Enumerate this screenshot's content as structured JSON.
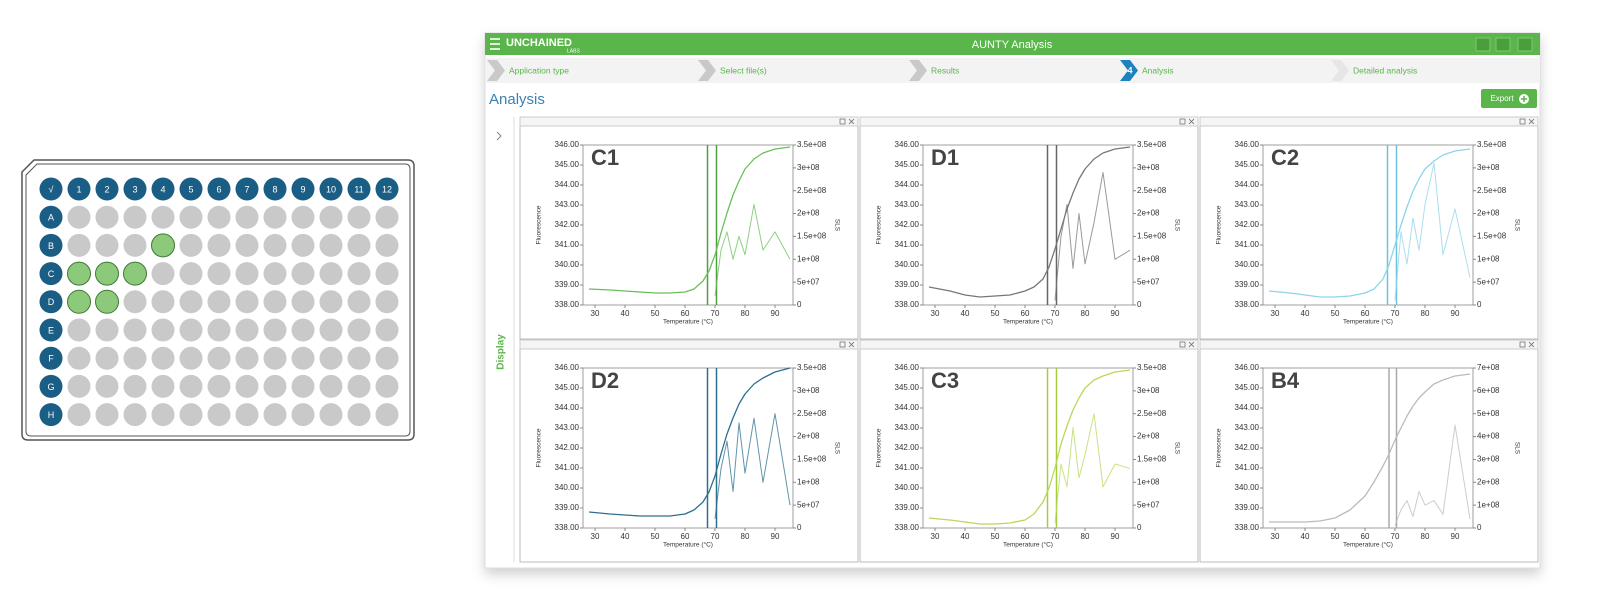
{
  "window": {
    "logo": "UNCHAINED",
    "logo_sub": "LABS",
    "title": "AUNTY Analysis"
  },
  "steps": [
    "Application type",
    "Select file(s)",
    "Results",
    "Analysis",
    "Detailed analysis"
  ],
  "active_step": 4,
  "page": {
    "heading": "Analysis",
    "export": "Export",
    "side_label": "Display"
  },
  "plate": {
    "corner": "√",
    "columns": [
      1,
      2,
      3,
      4,
      5,
      6,
      7,
      8,
      9,
      10,
      11,
      12
    ],
    "rows": [
      "A",
      "B",
      "C",
      "D",
      "E",
      "F",
      "G",
      "H"
    ]
  },
  "analysis": {
    "axes": {
      "x_label": "Temperature (°C)",
      "y_label": "Fluorescence",
      "y2_label": "SLS",
      "xlim": [
        26,
        96
      ],
      "xticks": [
        30,
        40,
        50,
        60,
        70,
        80,
        90
      ],
      "ylim": [
        338,
        346
      ],
      "yticks": [
        {
          "value": 338,
          "label": "338.00"
        },
        {
          "value": 339,
          "label": "339.00"
        },
        {
          "value": 340,
          "label": "340.00"
        },
        {
          "value": 341,
          "label": "341.00"
        },
        {
          "value": 342,
          "label": "342.00"
        },
        {
          "value": 343,
          "label": "343.00"
        },
        {
          "value": 344,
          "label": "344.00"
        },
        {
          "value": 345,
          "label": "345.00"
        },
        {
          "value": 346,
          "label": "346.00"
        }
      ]
    },
    "temperature": [
      28,
      35,
      40,
      45,
      50,
      55,
      60,
      63,
      66,
      68,
      70,
      72,
      74,
      76,
      78,
      80,
      83,
      86,
      90,
      95
    ],
    "panels": [
      {
        "title": "C1",
        "color": "#6abf5a",
        "marker_color": "#4f9e42",
        "markers": [
          67.5,
          70.5
        ],
        "fluorescence": [
          338.8,
          338.75,
          338.7,
          338.65,
          338.6,
          338.6,
          338.65,
          338.8,
          339.2,
          339.7,
          340.5,
          341.6,
          342.6,
          343.5,
          344.2,
          344.8,
          345.3,
          345.6,
          345.8,
          345.9
        ],
        "sls": [
          null,
          null,
          null,
          null,
          null,
          null,
          null,
          null,
          null,
          null,
          20000000,
          120000000,
          160000000,
          100000000,
          150000000,
          110000000,
          220000000,
          120000000,
          160000000,
          100000000
        ],
        "y2lim": [
          0,
          350000000
        ],
        "y2ticks": [
          0,
          {
            "value": 50000000,
            "label": "5e+07"
          },
          {
            "value": 100000000,
            "label": "1e+08"
          },
          {
            "value": 150000000,
            "label": "1.5e+08"
          },
          {
            "value": 200000000,
            "label": "2e+08"
          },
          {
            "value": 250000000,
            "label": "2.5e+08"
          },
          {
            "value": 300000000,
            "label": "3e+08"
          },
          {
            "value": 350000000,
            "label": "3.5e+08"
          }
        ]
      },
      {
        "title": "D1",
        "color": "#777777",
        "marker_color": "#666666",
        "markers": [
          67.5,
          70.5
        ],
        "fluorescence": [
          338.9,
          338.7,
          338.5,
          338.4,
          338.45,
          338.5,
          338.7,
          338.9,
          339.3,
          339.9,
          340.8,
          341.8,
          342.8,
          343.6,
          344.3,
          344.8,
          345.3,
          345.6,
          345.8,
          345.9
        ],
        "sls": [
          null,
          null,
          null,
          null,
          null,
          null,
          null,
          null,
          null,
          null,
          10000000,
          150000000,
          220000000,
          80000000,
          200000000,
          90000000,
          180000000,
          290000000,
          100000000,
          120000000
        ],
        "y2lim": [
          0,
          350000000
        ],
        "y2ticks": [
          0,
          {
            "value": 50000000,
            "label": "5e+07"
          },
          {
            "value": 100000000,
            "label": "1e+08"
          },
          {
            "value": 150000000,
            "label": "1.5e+08"
          },
          {
            "value": 200000000,
            "label": "2e+08"
          },
          {
            "value": 250000000,
            "label": "2.5e+08"
          },
          {
            "value": 300000000,
            "label": "3e+08"
          },
          {
            "value": 350000000,
            "label": "3.5e+08"
          }
        ]
      },
      {
        "title": "C2",
        "color": "#8fd3ea",
        "marker_color": "#6cc3e0",
        "markers": [
          67.5,
          70.5
        ],
        "fluorescence": [
          338.7,
          338.6,
          338.5,
          338.4,
          338.4,
          338.45,
          338.6,
          338.8,
          339.3,
          340.0,
          341.0,
          342.0,
          342.9,
          343.7,
          344.3,
          344.8,
          345.2,
          345.5,
          345.7,
          345.8
        ],
        "sls": [
          null,
          null,
          null,
          null,
          null,
          null,
          null,
          null,
          null,
          null,
          10000000,
          160000000,
          90000000,
          190000000,
          120000000,
          220000000,
          310000000,
          110000000,
          210000000,
          60000000
        ],
        "y2lim": [
          0,
          350000000
        ],
        "y2ticks": [
          0,
          {
            "value": 50000000,
            "label": "5e+07"
          },
          {
            "value": 100000000,
            "label": "1e+08"
          },
          {
            "value": 150000000,
            "label": "1.5e+08"
          },
          {
            "value": 200000000,
            "label": "2e+08"
          },
          {
            "value": 250000000,
            "label": "2.5e+08"
          },
          {
            "value": 300000000,
            "label": "3e+08"
          },
          {
            "value": 350000000,
            "label": "3.5e+08"
          }
        ]
      },
      {
        "title": "D2",
        "color": "#2e6f8e",
        "marker_color": "#2e6f8e",
        "markers": [
          67.5,
          70.5
        ],
        "fluorescence": [
          338.8,
          338.7,
          338.65,
          338.6,
          338.6,
          338.6,
          338.7,
          338.9,
          339.3,
          339.8,
          340.6,
          341.7,
          342.7,
          343.5,
          344.2,
          344.7,
          345.2,
          345.5,
          345.8,
          346.0
        ],
        "sls": [
          null,
          null,
          null,
          null,
          null,
          null,
          null,
          null,
          null,
          null,
          20000000,
          130000000,
          190000000,
          80000000,
          230000000,
          120000000,
          240000000,
          100000000,
          250000000,
          50000000
        ],
        "y2lim": [
          0,
          350000000
        ],
        "y2ticks": [
          0,
          {
            "value": 50000000,
            "label": "5e+07"
          },
          {
            "value": 100000000,
            "label": "1e+08"
          },
          {
            "value": 150000000,
            "label": "1.5e+08"
          },
          {
            "value": 200000000,
            "label": "2e+08"
          },
          {
            "value": 250000000,
            "label": "2.5e+08"
          },
          {
            "value": 300000000,
            "label": "3e+08"
          },
          {
            "value": 350000000,
            "label": "3.5e+08"
          }
        ]
      },
      {
        "title": "C3",
        "color": "#b7d957",
        "marker_color": "#a6cc3f",
        "markers": [
          67.5,
          70.5
        ],
        "fluorescence": [
          338.5,
          338.4,
          338.3,
          338.2,
          338.2,
          338.25,
          338.4,
          338.7,
          339.3,
          340.0,
          341.0,
          342.2,
          343.1,
          343.9,
          344.5,
          345.0,
          345.4,
          345.6,
          345.8,
          345.9
        ],
        "sls": [
          null,
          null,
          null,
          null,
          null,
          null,
          null,
          null,
          null,
          null,
          10000000,
          140000000,
          90000000,
          220000000,
          110000000,
          160000000,
          250000000,
          90000000,
          140000000,
          130000000
        ],
        "y2lim": [
          0,
          350000000
        ],
        "y2ticks": [
          0,
          {
            "value": 50000000,
            "label": "5e+07"
          },
          {
            "value": 100000000,
            "label": "1e+08"
          },
          {
            "value": 150000000,
            "label": "1.5e+08"
          },
          {
            "value": 200000000,
            "label": "2e+08"
          },
          {
            "value": 250000000,
            "label": "2.5e+08"
          },
          {
            "value": 300000000,
            "label": "3e+08"
          },
          {
            "value": 350000000,
            "label": "3.5e+08"
          }
        ]
      },
      {
        "title": "B4",
        "color": "#bbbbbb",
        "marker_color": "#aaaaaa",
        "markers": [
          68,
          70.5
        ],
        "fluorescence": [
          338.3,
          338.3,
          338.3,
          338.35,
          338.5,
          338.9,
          339.6,
          340.3,
          341.1,
          341.7,
          342.4,
          343.0,
          343.6,
          344.1,
          344.5,
          344.8,
          345.2,
          345.4,
          345.6,
          345.7
        ],
        "sls": [
          null,
          null,
          null,
          null,
          null,
          null,
          null,
          null,
          null,
          null,
          10000000,
          80000000,
          120000000,
          50000000,
          160000000,
          100000000,
          120000000,
          60000000,
          450000000,
          40000000
        ],
        "y2lim": [
          0,
          700000000
        ],
        "y2ticks": [
          0,
          {
            "value": 100000000,
            "label": "1e+08"
          },
          {
            "value": 200000000,
            "label": "2e+08"
          },
          {
            "value": 300000000,
            "label": "3e+08"
          },
          {
            "value": 400000000,
            "label": "4e+08"
          },
          {
            "value": 500000000,
            "label": "5e+08"
          },
          {
            "value": 600000000,
            "label": "6e+08"
          },
          {
            "value": 700000000,
            "label": "7e+08"
          }
        ]
      }
    ]
  }
}
